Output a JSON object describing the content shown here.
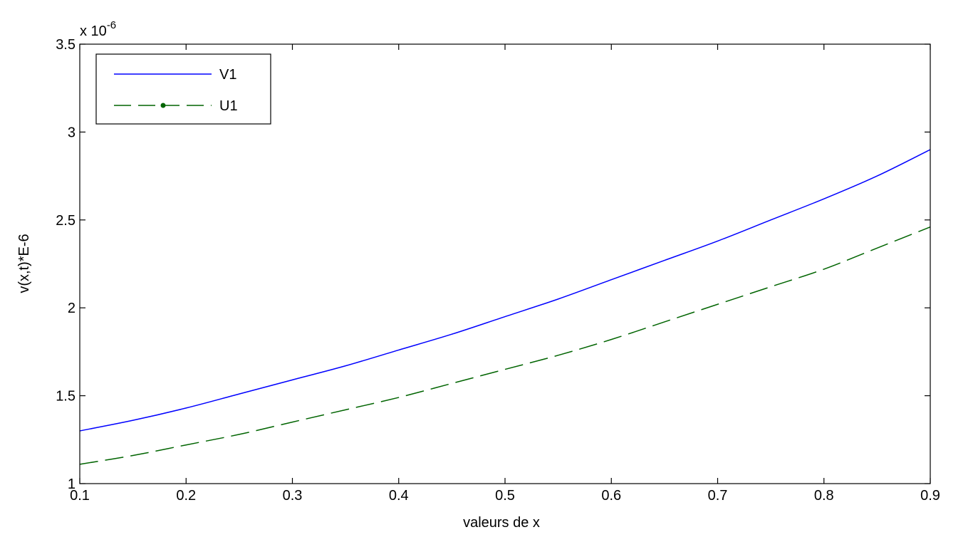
{
  "chart_data": {
    "type": "line",
    "xlabel": "valeurs de x",
    "ylabel": "v(x,t)*E-6",
    "exponent_base": "x 10",
    "exponent_power": "-6",
    "xlim": [
      0.1,
      0.9
    ],
    "ylim": [
      1.0,
      3.5
    ],
    "y_scale_factor": 1e-06,
    "xticks": [
      "0.1",
      "0.2",
      "0.3",
      "0.4",
      "0.5",
      "0.6",
      "0.7",
      "0.8",
      "0.9"
    ],
    "yticks": [
      "1",
      "1.5",
      "2",
      "2.5",
      "3",
      "3.5"
    ],
    "grid": false,
    "legend_position": "top-left",
    "series": [
      {
        "name": "V1",
        "color": "#0000ff",
        "style": "solid",
        "x": [
          0.1,
          0.15,
          0.2,
          0.25,
          0.3,
          0.35,
          0.4,
          0.45,
          0.5,
          0.55,
          0.6,
          0.65,
          0.7,
          0.75,
          0.8,
          0.85,
          0.9
        ],
        "y": [
          1.3,
          1.36,
          1.43,
          1.51,
          1.59,
          1.67,
          1.76,
          1.85,
          1.95,
          2.05,
          2.16,
          2.27,
          2.38,
          2.5,
          2.62,
          2.75,
          2.9
        ]
      },
      {
        "name": "U1",
        "color": "#006400",
        "style": "dashed",
        "marker": "dot",
        "x": [
          0.1,
          0.15,
          0.2,
          0.25,
          0.3,
          0.35,
          0.4,
          0.45,
          0.5,
          0.55,
          0.6,
          0.65,
          0.7,
          0.75,
          0.8,
          0.85,
          0.9
        ],
        "y": [
          1.11,
          1.16,
          1.22,
          1.28,
          1.35,
          1.42,
          1.49,
          1.57,
          1.65,
          1.73,
          1.82,
          1.92,
          2.02,
          2.12,
          2.22,
          2.34,
          2.46
        ]
      }
    ]
  }
}
